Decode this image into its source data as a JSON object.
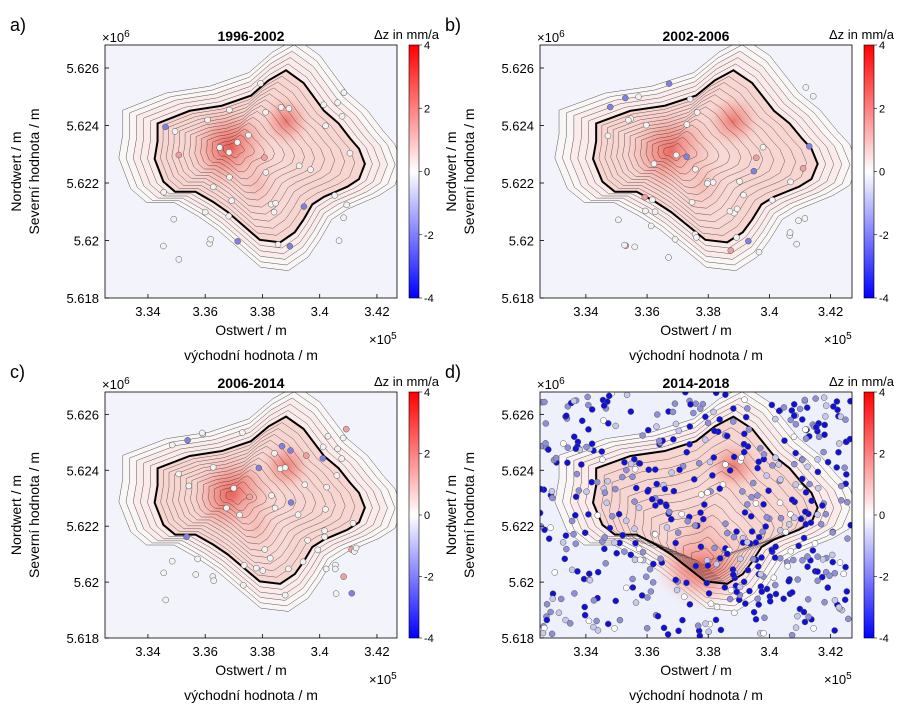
{
  "figure": {
    "colorbar_title": "Δz in mm/a",
    "x_label_de": "Ostwert / m",
    "x_label_cz": "východní hodnota / m",
    "y_label_de": "Nordwert / m",
    "y_label_cz": "Severní hodnota / m",
    "x_exponent": "×10",
    "x_exponent_power": "5",
    "y_exponent": "×10",
    "y_exponent_power": "6",
    "colors": {
      "negative": "#0000ff",
      "zero": "#ffffff",
      "positive": "#ff0000",
      "outline": "#000000"
    }
  },
  "chart_data": [
    {
      "type": "heatmap",
      "panel": "a)",
      "title": "1996-2002",
      "xlabel": "Ostwert / m",
      "ylabel": "Nordwert / m",
      "x_ticks": [
        "3.34",
        "3.36",
        "3.38",
        "3.4",
        "3.42"
      ],
      "y_ticks": [
        "5.618",
        "5.62",
        "5.622",
        "5.624",
        "5.626"
      ],
      "xlim": [
        332500,
        342700
      ],
      "ylim": [
        5618000,
        5626800
      ],
      "colorbar": {
        "label": "Δz in mm/a",
        "ticks": [
          "4",
          "2",
          "0",
          "-2",
          "-4"
        ],
        "range": [
          -4,
          4
        ]
      },
      "legend": "colorbar-right",
      "peak_value_mm_per_a": 3,
      "peak_location": [
        336900,
        5623200
      ],
      "grid": false
    },
    {
      "type": "heatmap",
      "panel": "b)",
      "title": "2002-2006",
      "xlabel": "Ostwert / m",
      "ylabel": "Nordwert / m",
      "x_ticks": [
        "3.34",
        "3.36",
        "3.38",
        "3.4",
        "3.42"
      ],
      "y_ticks": [
        "5.618",
        "5.62",
        "5.622",
        "5.624",
        "5.626"
      ],
      "xlim": [
        332500,
        342700
      ],
      "ylim": [
        5618000,
        5626800
      ],
      "colorbar": {
        "label": "Δz in mm/a",
        "ticks": [
          "4",
          "2",
          "0",
          "-2",
          "-4"
        ],
        "range": [
          -4,
          4
        ]
      },
      "legend": "colorbar-right",
      "peak_value_mm_per_a": 2.5,
      "peak_location": [
        336800,
        5623100
      ],
      "grid": false
    },
    {
      "type": "heatmap",
      "panel": "c)",
      "title": "2006-2014",
      "xlabel": "Ostwert / m",
      "ylabel": "Nordwert / m",
      "x_ticks": [
        "3.34",
        "3.36",
        "3.38",
        "3.4",
        "3.42"
      ],
      "y_ticks": [
        "5.618",
        "5.62",
        "5.622",
        "5.624",
        "5.626"
      ],
      "xlim": [
        332500,
        342700
      ],
      "ylim": [
        5618000,
        5626800
      ],
      "colorbar": {
        "label": "Δz in mm/a",
        "ticks": [
          "4",
          "2",
          "0",
          "-2",
          "-4"
        ],
        "range": [
          -4,
          4
        ]
      },
      "legend": "colorbar-right",
      "peak_value_mm_per_a": 3,
      "peak_location": [
        337000,
        5623100
      ],
      "grid": false
    },
    {
      "type": "heatmap",
      "panel": "d)",
      "title": "2014-2018",
      "xlabel": "Ostwert / m",
      "ylabel": "Nordwert / m",
      "x_ticks": [
        "3.34",
        "3.36",
        "3.38",
        "3.4",
        "3.42"
      ],
      "y_ticks": [
        "5.618",
        "5.62",
        "5.622",
        "5.624",
        "5.626"
      ],
      "xlim": [
        332500,
        342700
      ],
      "ylim": [
        5618000,
        5626800
      ],
      "colorbar": {
        "label": "Δz in mm/a",
        "ticks": [
          "4",
          "2",
          "0",
          "-2",
          "-4"
        ],
        "range": [
          -4,
          4
        ]
      },
      "legend": "colorbar-right",
      "peak_value_mm_per_a": 3.5,
      "peak_location": [
        337800,
        5620700
      ],
      "grid": false
    }
  ]
}
